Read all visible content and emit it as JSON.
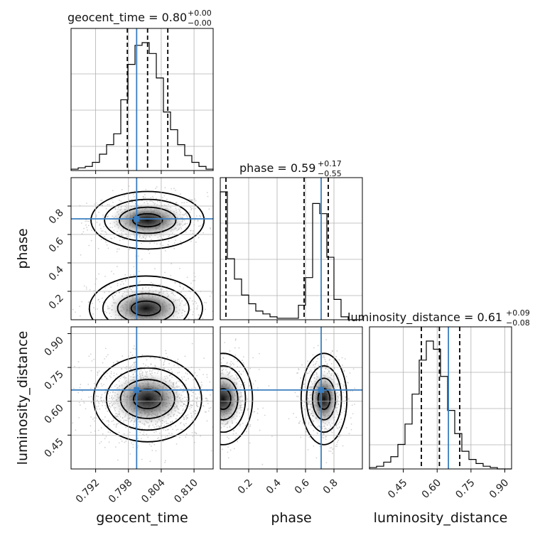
{
  "chart_data": {
    "type": "corner",
    "parameters": [
      "geocent_time",
      "phase",
      "luminosity_distance"
    ],
    "titles": [
      {
        "param": "geocent_time",
        "text": "geocent_time = 0.80",
        "sup": "+0.00",
        "sub": "−0.00"
      },
      {
        "param": "phase",
        "text": "phase = 0.59",
        "sup": "+0.17",
        "sub": "−0.55"
      },
      {
        "param": "luminosity_distance",
        "text": "luminosity_distance = 0.61",
        "sup": "+0.09",
        "sub": "−0.08"
      }
    ],
    "axes": {
      "geocent_time": {
        "range": [
          0.7875,
          0.8135
        ],
        "ticks": [
          0.792,
          0.798,
          0.804,
          0.81
        ],
        "tick_labels": [
          "0.792",
          "0.798",
          "0.804",
          "0.810"
        ]
      },
      "phase": {
        "range": [
          0.0,
          1.0
        ],
        "ticks": [
          0.2,
          0.4,
          0.6,
          0.8
        ],
        "tick_labels": [
          "0.2",
          "0.4",
          "0.6",
          "0.8"
        ]
      },
      "luminosity_distance": {
        "range": [
          0.3,
          0.93
        ],
        "ticks": [
          0.45,
          0.6,
          0.75,
          0.9
        ],
        "tick_labels": [
          "0.45",
          "0.60",
          "0.75",
          "0.90"
        ]
      }
    },
    "truths": {
      "geocent_time": 0.7995,
      "phase": 0.71,
      "luminosity_distance": 0.65
    },
    "quantiles": {
      "geocent_time": [
        0.7978,
        0.8015,
        0.8052
      ],
      "phase": [
        0.04,
        0.59,
        0.76
      ],
      "luminosity_distance": [
        0.53,
        0.61,
        0.7
      ]
    },
    "histograms": {
      "geocent_time": {
        "edges_range": [
          0.7875,
          0.8135
        ],
        "counts": [
          1,
          2,
          3,
          6,
          12,
          19,
          27,
          52,
          78,
          92,
          94,
          86,
          68,
          43,
          30,
          19,
          11,
          6,
          3,
          1
        ]
      },
      "phase": {
        "edges_range": [
          0.0,
          1.0
        ],
        "counts": [
          88,
          42,
          28,
          17,
          11,
          6,
          4,
          2,
          1,
          1,
          1,
          10,
          29,
          80,
          73,
          43,
          14,
          2,
          0,
          0
        ]
      },
      "luminosity_distance": {
        "edges_range": [
          0.3,
          0.93
        ],
        "counts": [
          1,
          2,
          5,
          9,
          18,
          33,
          55,
          80,
          94,
          88,
          68,
          43,
          26,
          13,
          7,
          4,
          2,
          1,
          0,
          0
        ]
      }
    },
    "grid": true
  }
}
